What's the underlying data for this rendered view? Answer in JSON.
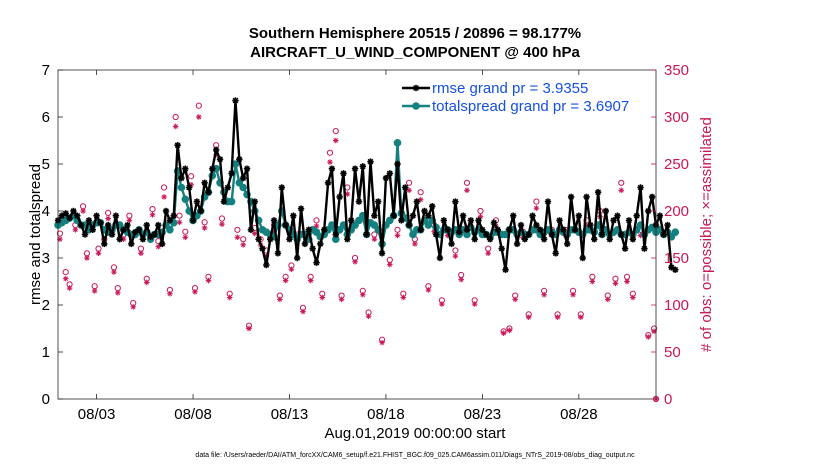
{
  "title_line1": "Southern Hemisphere 20515 / 20896 = 98.177%",
  "title_line2": "AIRCRAFT_U_WIND_COMPONENT @ 400 hPa",
  "x_start_label": "Aug.01,2019 00:00:00 start",
  "footnote": "data file: /Users/raeder/DAI/ATM_forcXX/CAM6_setup/f.e21.FHIST_BGC.f09_025.CAM6assim.011/Diags_NTrS_2019-08/obs_diag_output.nc",
  "colors": {
    "rmse": "#000000",
    "spread": "#148080",
    "obs": "#C8185A",
    "legend_text": "#1650E0"
  },
  "chart_data": {
    "type": "line",
    "title": "Southern Hemisphere 20515 / 20896 = 98.177%\nAIRCRAFT_U_WIND_COMPONENT @ 400 hPa",
    "xlabel": "Aug.01,2019 00:00:00 start",
    "ylabel": "rmse and totalspread",
    "y2label": "# of obs: o=possible; ×=assimilated",
    "x_tick_labels": [
      "08/03",
      "08/08",
      "08/13",
      "08/18",
      "08/23",
      "08/28"
    ],
    "x_tick_days": [
      3,
      8,
      13,
      18,
      23,
      28
    ],
    "xlim": [
      1,
      32
    ],
    "ylim": [
      0,
      7
    ],
    "y_ticks": [
      0,
      1,
      2,
      3,
      4,
      5,
      6,
      7
    ],
    "y2lim": [
      0,
      350
    ],
    "y2_ticks": [
      0,
      50,
      100,
      150,
      200,
      250,
      300,
      350
    ],
    "legend": [
      "rmse grand pr = 3.9355",
      "totalspread grand pr = 3.6907"
    ],
    "series": [
      {
        "name": "rmse",
        "axis": "left",
        "values": [
          3.8,
          3.9,
          3.95,
          3.85,
          4.0,
          3.9,
          3.7,
          3.5,
          3.8,
          3.6,
          3.9,
          3.75,
          3.3,
          3.7,
          3.5,
          3.9,
          3.4,
          3.6,
          3.7,
          3.3,
          3.55,
          3.6,
          3.4,
          3.7,
          3.45,
          3.5,
          3.7,
          3.3,
          4.0,
          3.8,
          3.9,
          5.4,
          4.7,
          4.9,
          4.5,
          3.8,
          4.2,
          4.0,
          4.6,
          4.4,
          4.9,
          5.3,
          5.1,
          4.2,
          4.5,
          4.8,
          6.35,
          5.1,
          4.7,
          4.9,
          3.6,
          4.2,
          3.4,
          3.2,
          2.85,
          3.4,
          3.8,
          3.1,
          4.5,
          3.7,
          3.4,
          3.9,
          3.0,
          4.05,
          3.3,
          3.6,
          3.2,
          2.9,
          3.3,
          3.6,
          4.6,
          4.9,
          3.5,
          4.3,
          4.8,
          3.4,
          3.8,
          4.9,
          4.2,
          4.95,
          3.5,
          5.05,
          3.9,
          4.2,
          3.1,
          4.7,
          4.8,
          3.9,
          5.0,
          3.8,
          4.5,
          3.7,
          3.9,
          4.2,
          3.6,
          4.0,
          3.9,
          4.1,
          3.5,
          3.0,
          3.8,
          3.6,
          3.3,
          4.2,
          3.55,
          3.9,
          3.6,
          3.8,
          3.4,
          3.8,
          3.6,
          3.5,
          3.4,
          3.75,
          3.6,
          3.2,
          2.75,
          3.6,
          3.9,
          3.3,
          3.7,
          3.4,
          3.5,
          3.9,
          3.7,
          3.6,
          3.4,
          4.2,
          3.5,
          3.1,
          3.8,
          3.6,
          3.3,
          4.3,
          3.6,
          3.9,
          3.0,
          4.3,
          3.7,
          3.4,
          4.4,
          3.5,
          4.0,
          3.4,
          3.8,
          3.9,
          3.5,
          3.2,
          3.8,
          3.4,
          3.9,
          4.5,
          3.2,
          4.0,
          4.3,
          3.7,
          3.9,
          3.5,
          3.7,
          2.8,
          2.75
        ],
        "x_step_days": 0.2
      },
      {
        "name": "totalspread",
        "axis": "left",
        "values": [
          3.7,
          3.75,
          3.8,
          3.85,
          3.9,
          3.8,
          3.7,
          3.7,
          3.6,
          3.7,
          3.75,
          3.75,
          3.6,
          3.55,
          3.6,
          3.7,
          3.7,
          3.6,
          3.55,
          3.5,
          3.5,
          3.6,
          3.5,
          3.55,
          3.4,
          3.5,
          3.5,
          3.55,
          3.7,
          3.6,
          3.75,
          4.85,
          4.5,
          4.25,
          4.0,
          3.8,
          3.9,
          4.0,
          4.3,
          4.4,
          4.75,
          4.9,
          4.6,
          4.4,
          4.2,
          4.2,
          5.0,
          4.6,
          4.5,
          4.35,
          4.2,
          4.0,
          3.8,
          3.6,
          3.55,
          3.5,
          3.45,
          3.7,
          4.0,
          3.7,
          3.6,
          3.5,
          3.4,
          3.5,
          3.5,
          3.4,
          3.6,
          3.55,
          3.45,
          3.5,
          3.6,
          3.7,
          3.4,
          3.6,
          3.7,
          3.5,
          3.6,
          3.7,
          3.8,
          3.9,
          3.5,
          3.75,
          3.7,
          3.6,
          3.3,
          3.7,
          3.8,
          3.9,
          5.45,
          3.95,
          3.85,
          3.7,
          3.5,
          3.6,
          3.6,
          3.8,
          3.7,
          3.8,
          3.65,
          3.5,
          3.6,
          3.6,
          3.55,
          3.6,
          3.5,
          3.6,
          3.5,
          3.65,
          3.55,
          3.6,
          3.5,
          3.5,
          3.45,
          3.55,
          3.55,
          3.5,
          3.5,
          3.6,
          3.6,
          3.5,
          3.55,
          3.5,
          3.5,
          3.6,
          3.6,
          3.5,
          3.55,
          3.6,
          3.55,
          3.5,
          3.6,
          3.55,
          3.5,
          3.6,
          3.6,
          3.55,
          3.5,
          3.6,
          3.6,
          3.55,
          3.7,
          3.5,
          3.6,
          3.5,
          3.55,
          3.6,
          3.5,
          3.5,
          3.55,
          3.5,
          3.6,
          3.7,
          3.5,
          3.6,
          3.65,
          3.55,
          3.6,
          3.5,
          3.55,
          3.45,
          3.55
        ],
        "x_step_days": 0.2
      },
      {
        "name": "obs possible (o)",
        "axis": "right",
        "points": [
          [
            1.1,
            176
          ],
          [
            1.4,
            135
          ],
          [
            1.6,
            122
          ],
          [
            1.9,
            185
          ],
          [
            2.3,
            205
          ],
          [
            2.5,
            155
          ],
          [
            2.9,
            120
          ],
          [
            3.1,
            160
          ],
          [
            3.4,
            170
          ],
          [
            3.6,
            198
          ],
          [
            3.9,
            140
          ],
          [
            4.1,
            118
          ],
          [
            4.4,
            175
          ],
          [
            4.7,
            195
          ],
          [
            4.9,
            102
          ],
          [
            5.3,
            160
          ],
          [
            5.6,
            128
          ],
          [
            5.9,
            202
          ],
          [
            6.2,
            168
          ],
          [
            6.5,
            225
          ],
          [
            6.8,
            116
          ],
          [
            7.1,
            300
          ],
          [
            7.3,
            195
          ],
          [
            7.6,
            178
          ],
          [
            7.9,
            237
          ],
          [
            8.1,
            118
          ],
          [
            8.3,
            312
          ],
          [
            8.6,
            188
          ],
          [
            8.8,
            130
          ],
          [
            9.2,
            270
          ],
          [
            9.5,
            192
          ],
          [
            9.9,
            112
          ],
          [
            10.3,
            180
          ],
          [
            10.6,
            170
          ],
          [
            10.9,
            78
          ],
          [
            11.2,
            182
          ],
          [
            11.5,
            170
          ],
          [
            11.8,
            158
          ],
          [
            12.2,
            185
          ],
          [
            12.5,
            110
          ],
          [
            12.8,
            130
          ],
          [
            13.1,
            142
          ],
          [
            13.4,
            175
          ],
          [
            13.7,
            97
          ],
          [
            14.1,
            130
          ],
          [
            14.4,
            190
          ],
          [
            14.7,
            112
          ],
          [
            15.1,
            262
          ],
          [
            15.4,
            285
          ],
          [
            15.7,
            110
          ],
          [
            16.0,
            225
          ],
          [
            16.4,
            150
          ],
          [
            16.8,
            115
          ],
          [
            17.1,
            92
          ],
          [
            17.4,
            175
          ],
          [
            17.8,
            63
          ],
          [
            18.2,
            148
          ],
          [
            18.6,
            180
          ],
          [
            18.9,
            112
          ],
          [
            19.2,
            230
          ],
          [
            19.5,
            170
          ],
          [
            19.8,
            220
          ],
          [
            20.2,
            120
          ],
          [
            20.5,
            185
          ],
          [
            20.9,
            105
          ],
          [
            21.2,
            180
          ],
          [
            21.6,
            158
          ],
          [
            21.9,
            132
          ],
          [
            22.2,
            230
          ],
          [
            22.6,
            105
          ],
          [
            22.9,
            200
          ],
          [
            23.3,
            160
          ],
          [
            23.7,
            190
          ],
          [
            24.1,
            72
          ],
          [
            24.4,
            75
          ],
          [
            24.7,
            110
          ],
          [
            25.1,
            178
          ],
          [
            25.4,
            90
          ],
          [
            25.8,
            210
          ],
          [
            26.2,
            115
          ],
          [
            26.6,
            180
          ],
          [
            26.9,
            90
          ],
          [
            27.3,
            180
          ],
          [
            27.7,
            115
          ],
          [
            28.1,
            90
          ],
          [
            28.4,
            190
          ],
          [
            28.7,
            130
          ],
          [
            29.1,
            200
          ],
          [
            29.5,
            110
          ],
          [
            29.9,
            128
          ],
          [
            30.2,
            230
          ],
          [
            30.5,
            130
          ],
          [
            30.8,
            112
          ],
          [
            31.2,
            180
          ],
          [
            31.6,
            68
          ],
          [
            31.9,
            75
          ],
          [
            32.0,
            0
          ]
        ]
      },
      {
        "name": "obs assimilated (x)",
        "axis": "right",
        "points": [
          [
            1.1,
            170
          ],
          [
            1.4,
            128
          ],
          [
            1.6,
            118
          ],
          [
            1.9,
            180
          ],
          [
            2.3,
            200
          ],
          [
            2.5,
            150
          ],
          [
            2.9,
            115
          ],
          [
            3.1,
            155
          ],
          [
            3.4,
            165
          ],
          [
            3.6,
            192
          ],
          [
            3.9,
            135
          ],
          [
            4.1,
            113
          ],
          [
            4.4,
            170
          ],
          [
            4.7,
            190
          ],
          [
            4.9,
            98
          ],
          [
            5.3,
            155
          ],
          [
            5.6,
            124
          ],
          [
            5.9,
            196
          ],
          [
            6.2,
            162
          ],
          [
            6.5,
            215
          ],
          [
            6.8,
            112
          ],
          [
            7.1,
            290
          ],
          [
            7.3,
            188
          ],
          [
            7.6,
            172
          ],
          [
            7.9,
            228
          ],
          [
            8.1,
            114
          ],
          [
            8.3,
            300
          ],
          [
            8.6,
            182
          ],
          [
            8.8,
            126
          ],
          [
            9.2,
            260
          ],
          [
            9.5,
            186
          ],
          [
            9.9,
            108
          ],
          [
            10.3,
            172
          ],
          [
            10.6,
            164
          ],
          [
            10.9,
            75
          ],
          [
            11.2,
            176
          ],
          [
            11.5,
            164
          ],
          [
            11.8,
            152
          ],
          [
            12.2,
            178
          ],
          [
            12.5,
            106
          ],
          [
            12.8,
            126
          ],
          [
            13.1,
            138
          ],
          [
            13.4,
            170
          ],
          [
            13.7,
            93
          ],
          [
            14.1,
            126
          ],
          [
            14.4,
            184
          ],
          [
            14.7,
            108
          ],
          [
            15.1,
            252
          ],
          [
            15.4,
            275
          ],
          [
            15.7,
            106
          ],
          [
            16.0,
            218
          ],
          [
            16.4,
            146
          ],
          [
            16.8,
            111
          ],
          [
            17.1,
            88
          ],
          [
            17.4,
            170
          ],
          [
            17.8,
            60
          ],
          [
            18.2,
            143
          ],
          [
            18.6,
            174
          ],
          [
            18.9,
            108
          ],
          [
            19.2,
            222
          ],
          [
            19.5,
            165
          ],
          [
            19.8,
            212
          ],
          [
            20.2,
            116
          ],
          [
            20.5,
            178
          ],
          [
            20.9,
            101
          ],
          [
            21.2,
            174
          ],
          [
            21.6,
            152
          ],
          [
            21.9,
            127
          ],
          [
            22.2,
            222
          ],
          [
            22.6,
            101
          ],
          [
            22.9,
            194
          ],
          [
            23.3,
            155
          ],
          [
            23.7,
            184
          ],
          [
            24.1,
            70
          ],
          [
            24.4,
            73
          ],
          [
            24.7,
            106
          ],
          [
            25.1,
            172
          ],
          [
            25.4,
            87
          ],
          [
            25.8,
            203
          ],
          [
            26.2,
            111
          ],
          [
            26.6,
            174
          ],
          [
            26.9,
            87
          ],
          [
            27.3,
            174
          ],
          [
            27.7,
            111
          ],
          [
            28.1,
            87
          ],
          [
            28.4,
            184
          ],
          [
            28.7,
            125
          ],
          [
            29.1,
            194
          ],
          [
            29.5,
            106
          ],
          [
            29.9,
            123
          ],
          [
            30.2,
            222
          ],
          [
            30.5,
            125
          ],
          [
            30.8,
            108
          ],
          [
            31.2,
            174
          ],
          [
            31.6,
            66
          ],
          [
            31.9,
            72
          ],
          [
            32.0,
            0
          ]
        ]
      }
    ]
  }
}
